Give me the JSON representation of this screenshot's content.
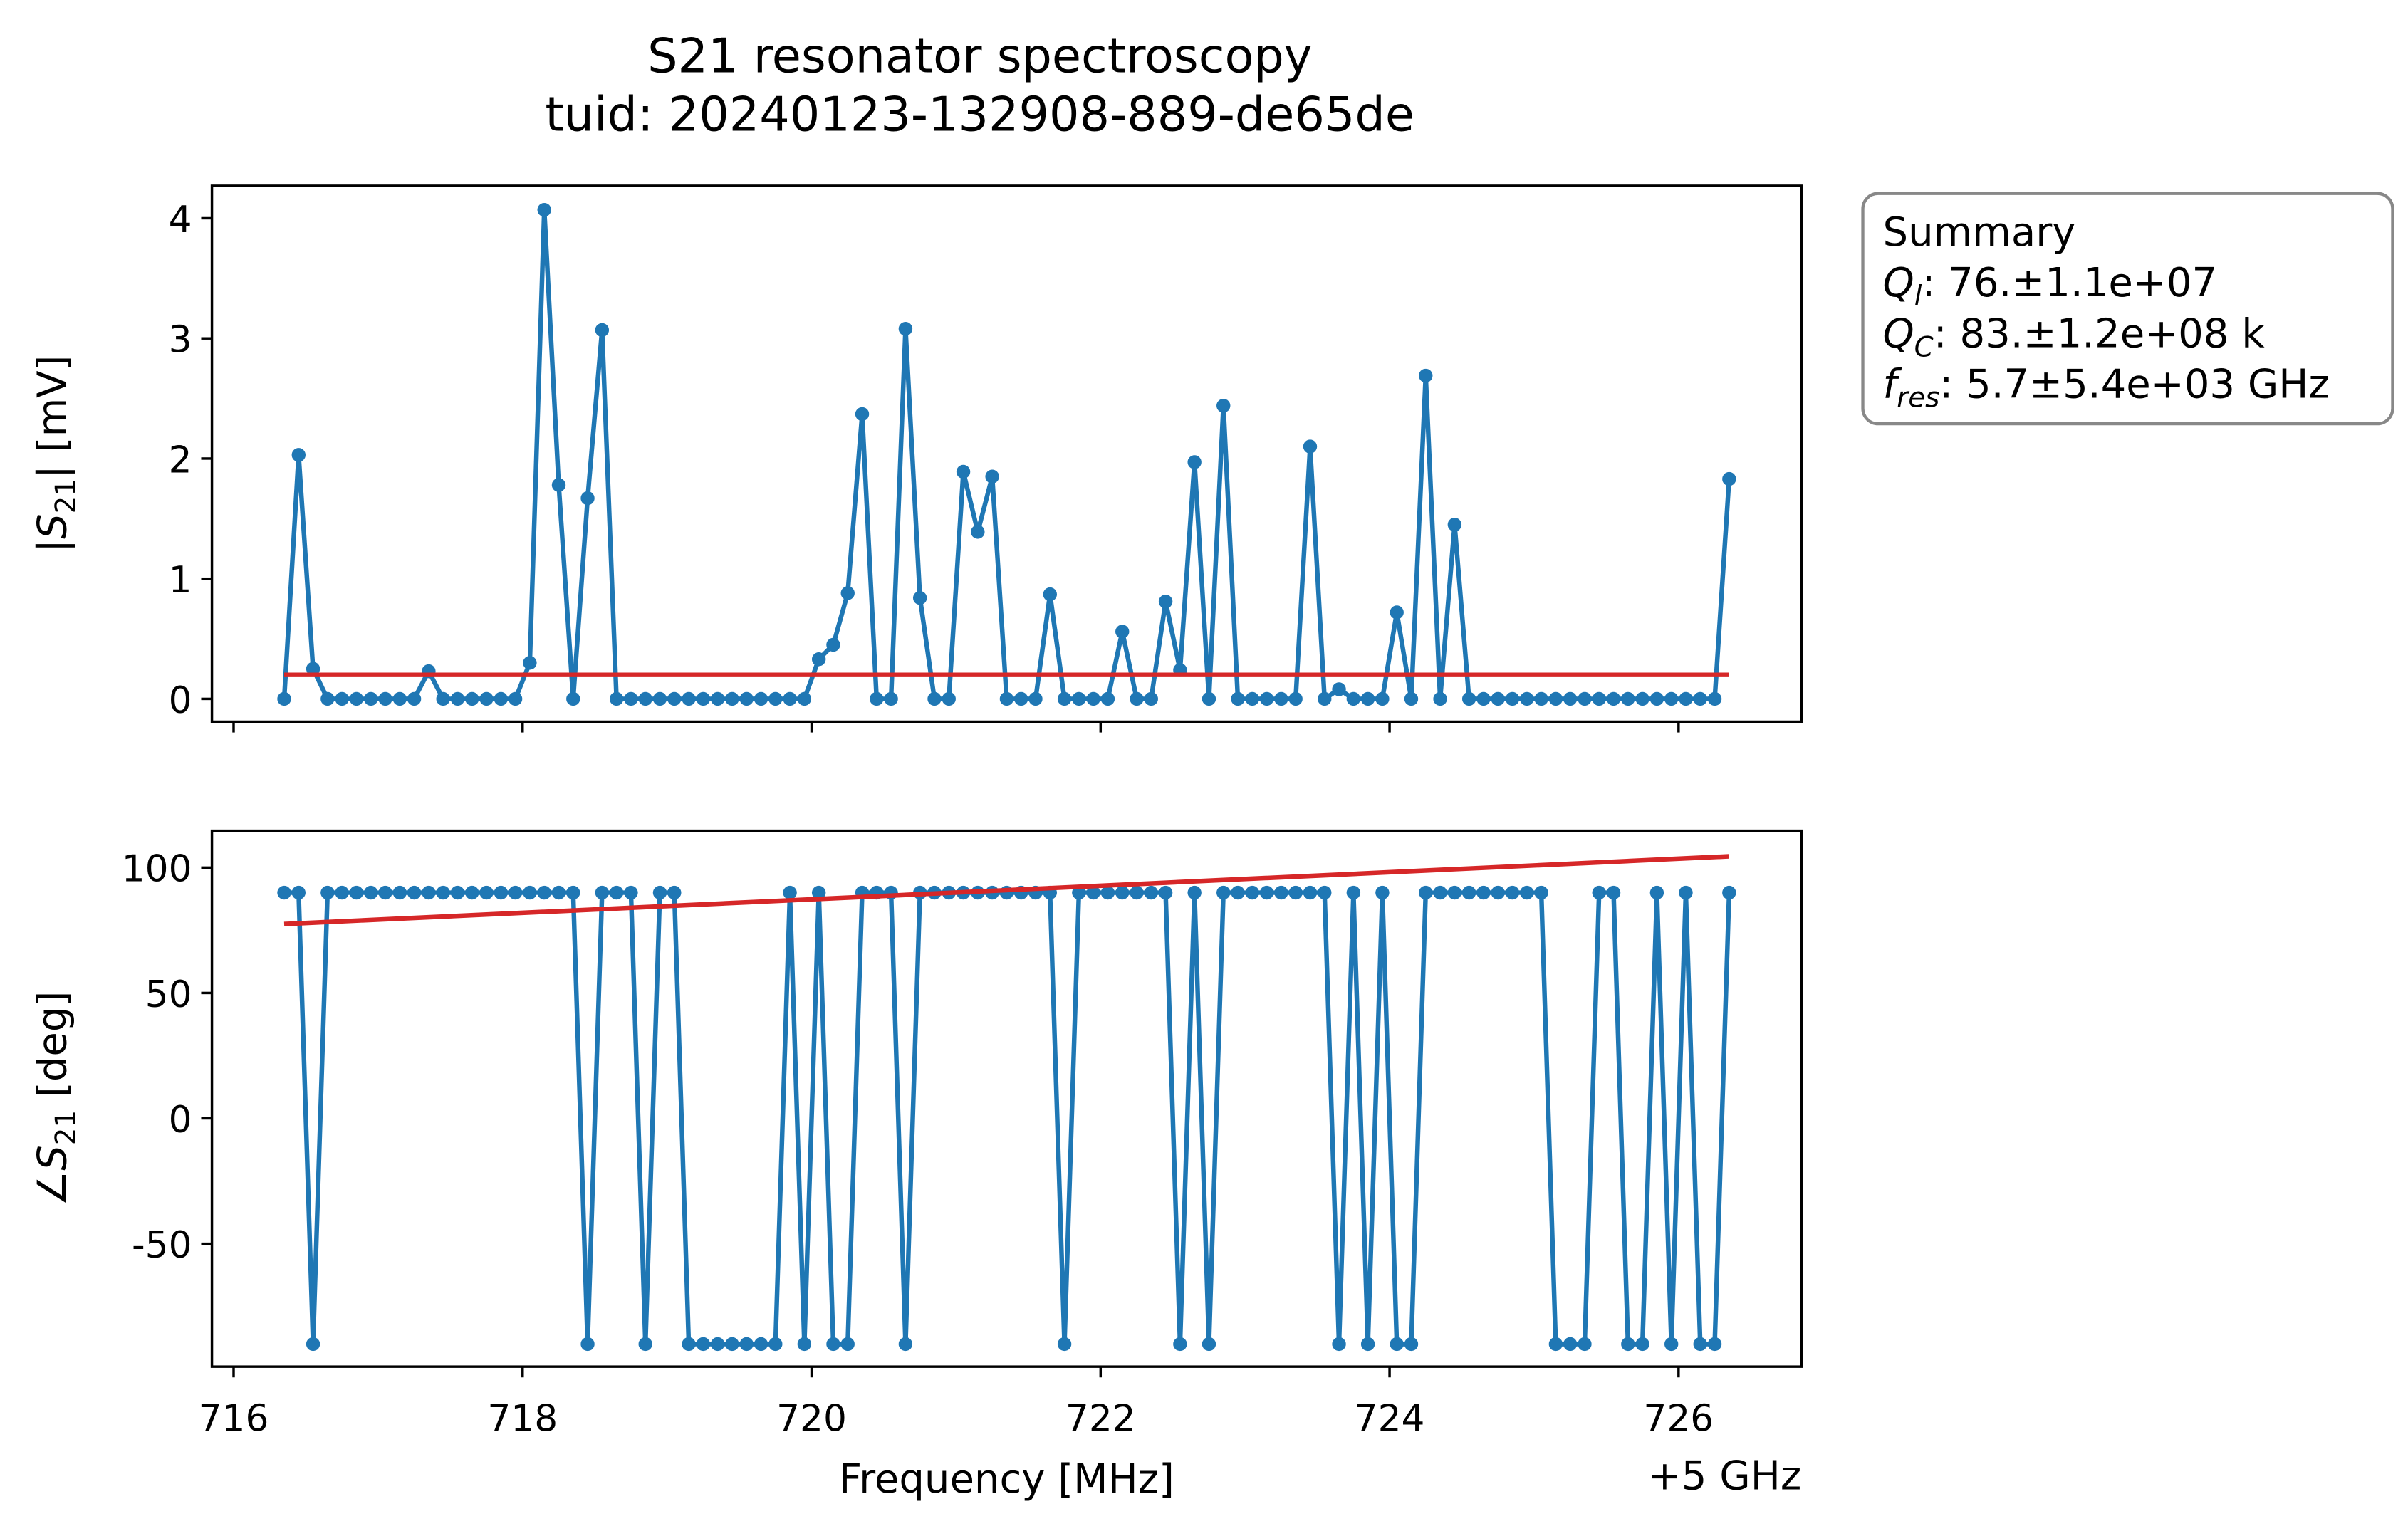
{
  "figure": {
    "title": "S21 resonator spectroscopy",
    "subtitle": "tuid: 20240123-132908-889-de65de",
    "summary": {
      "heading": "Summary",
      "lines": [
        {
          "symbol": "Q",
          "sub": "l",
          "text": ": 76.±1.1e+07"
        },
        {
          "symbol": "Q",
          "sub": "C",
          "text": ": 83.±1.2e+08 k"
        },
        {
          "symbol": "f",
          "sub": "res",
          "text": ": 5.7±5.4e+03 GHz"
        }
      ]
    }
  },
  "chart_data": [
    {
      "type": "line",
      "ylabel": {
        "prefix": "|",
        "symbol": "S",
        "sub": "21",
        "suffix": "| [mV]"
      },
      "x": [
        716.35,
        716.45,
        716.55,
        716.65,
        716.75,
        716.85,
        716.95,
        717.05,
        717.15,
        717.25,
        717.35,
        717.45,
        717.55,
        717.65,
        717.75,
        717.85,
        717.95,
        718.05,
        718.15,
        718.25,
        718.35,
        718.45,
        718.55,
        718.65,
        718.75,
        718.85,
        718.95,
        719.05,
        719.15,
        719.25,
        719.35,
        719.45,
        719.55,
        719.65,
        719.75,
        719.85,
        719.95,
        720.05,
        720.15,
        720.25,
        720.35,
        720.45,
        720.55,
        720.65,
        720.75,
        720.85,
        720.95,
        721.05,
        721.15,
        721.25,
        721.35,
        721.45,
        721.55,
        721.65,
        721.75,
        721.85,
        721.95,
        722.05,
        722.15,
        722.25,
        722.35,
        722.45,
        722.55,
        722.65,
        722.75,
        722.85,
        722.95,
        723.05,
        723.15,
        723.25,
        723.35,
        723.45,
        723.55,
        723.65,
        723.75,
        723.85,
        723.95,
        724.05,
        724.15,
        724.25,
        724.35,
        724.45,
        724.55,
        724.65,
        724.75,
        724.85,
        724.95,
        725.05,
        725.15,
        725.25,
        725.35,
        725.45,
        725.55,
        725.65,
        725.75,
        725.85,
        725.95,
        726.05,
        726.15,
        726.25,
        726.35
      ],
      "series": [
        {
          "color": "#1f77b4",
          "marker": true,
          "values": [
            0,
            2.03,
            0.25,
            0,
            0,
            0,
            0,
            0,
            0,
            0,
            0.23,
            0,
            0,
            0,
            0,
            0,
            0,
            0.3,
            4.07,
            1.78,
            0,
            1.67,
            3.07,
            0,
            0,
            0,
            0,
            0,
            0,
            0,
            0,
            0,
            0,
            0,
            0,
            0,
            0,
            0.33,
            0.45,
            0.88,
            2.37,
            0,
            0,
            3.08,
            0.84,
            0,
            0,
            1.89,
            1.39,
            1.85,
            0,
            0,
            0,
            0.87,
            0,
            0,
            0,
            0,
            0.56,
            0,
            0,
            0.81,
            0.24,
            1.97,
            0,
            2.44,
            0,
            0,
            0,
            0,
            0,
            2.1,
            0,
            0.08,
            0,
            0,
            0,
            0.72,
            0,
            2.69,
            0,
            1.45,
            0,
            0,
            0,
            0,
            0,
            0,
            0,
            0,
            0,
            0,
            0,
            0,
            0,
            0,
            0,
            0,
            0,
            0,
            1.83
          ]
        },
        {
          "color": "#d62728",
          "marker": false,
          "x": [
            716.35,
            726.35
          ],
          "values": [
            0.2,
            0.2
          ]
        }
      ],
      "xlim": [
        715.85,
        726.85
      ],
      "xticks": [
        716,
        718,
        720,
        722,
        724,
        726
      ],
      "show_xticklabels": false,
      "ylim": [
        -0.19,
        4.27
      ],
      "yticks": [
        0,
        1,
        2,
        3,
        4
      ]
    },
    {
      "type": "line",
      "ylabel": {
        "prefix": "∠",
        "symbol": "S",
        "sub": "21",
        "suffix": " [deg]"
      },
      "xlabel": "Frequency [MHz]",
      "x_offset": "+5 GHz",
      "x": [
        716.35,
        716.45,
        716.55,
        716.65,
        716.75,
        716.85,
        716.95,
        717.05,
        717.15,
        717.25,
        717.35,
        717.45,
        717.55,
        717.65,
        717.75,
        717.85,
        717.95,
        718.05,
        718.15,
        718.25,
        718.35,
        718.45,
        718.55,
        718.65,
        718.75,
        718.85,
        718.95,
        719.05,
        719.15,
        719.25,
        719.35,
        719.45,
        719.55,
        719.65,
        719.75,
        719.85,
        719.95,
        720.05,
        720.15,
        720.25,
        720.35,
        720.45,
        720.55,
        720.65,
        720.75,
        720.85,
        720.95,
        721.05,
        721.15,
        721.25,
        721.35,
        721.45,
        721.55,
        721.65,
        721.75,
        721.85,
        721.95,
        722.05,
        722.15,
        722.25,
        722.35,
        722.45,
        722.55,
        722.65,
        722.75,
        722.85,
        722.95,
        723.05,
        723.15,
        723.25,
        723.35,
        723.45,
        723.55,
        723.65,
        723.75,
        723.85,
        723.95,
        724.05,
        724.15,
        724.25,
        724.35,
        724.45,
        724.55,
        724.65,
        724.75,
        724.85,
        724.95,
        725.05,
        725.15,
        725.25,
        725.35,
        725.45,
        725.55,
        725.65,
        725.75,
        725.85,
        725.95,
        726.05,
        726.15,
        726.25,
        726.35
      ],
      "series": [
        {
          "color": "#1f77b4",
          "marker": true,
          "values": [
            90,
            90,
            -90,
            90,
            90,
            90,
            90,
            90,
            90,
            90,
            90,
            90,
            90,
            90,
            90,
            90,
            90,
            90,
            90,
            90,
            90,
            -90,
            90,
            90,
            90,
            -90,
            90,
            90,
            -90,
            -90,
            -90,
            -90,
            -90,
            -90,
            -90,
            90,
            -90,
            90,
            -90,
            -90,
            90,
            90,
            90,
            -90,
            90,
            90,
            90,
            90,
            90,
            90,
            90,
            90,
            90,
            90,
            -90,
            90,
            90,
            90,
            90,
            90,
            90,
            90,
            -90,
            90,
            -90,
            90,
            90,
            90,
            90,
            90,
            90,
            90,
            90,
            -90,
            90,
            -90,
            90,
            -90,
            -90,
            90,
            90,
            90,
            90,
            90,
            90,
            90,
            90,
            90,
            -90,
            -90,
            -90,
            90,
            90,
            -90,
            -90,
            90,
            -90,
            90,
            -90,
            -90,
            90
          ]
        },
        {
          "color": "#d62728",
          "marker": false,
          "x": [
            716.35,
            726.35
          ],
          "values": [
            77.5,
            104.5
          ]
        }
      ],
      "xlim": [
        715.85,
        726.85
      ],
      "xticks": [
        716,
        718,
        720,
        722,
        724,
        726
      ],
      "show_xticklabels": true,
      "ylim": [
        -99,
        114.7
      ],
      "yticks": [
        -50,
        0,
        50,
        100
      ]
    }
  ]
}
